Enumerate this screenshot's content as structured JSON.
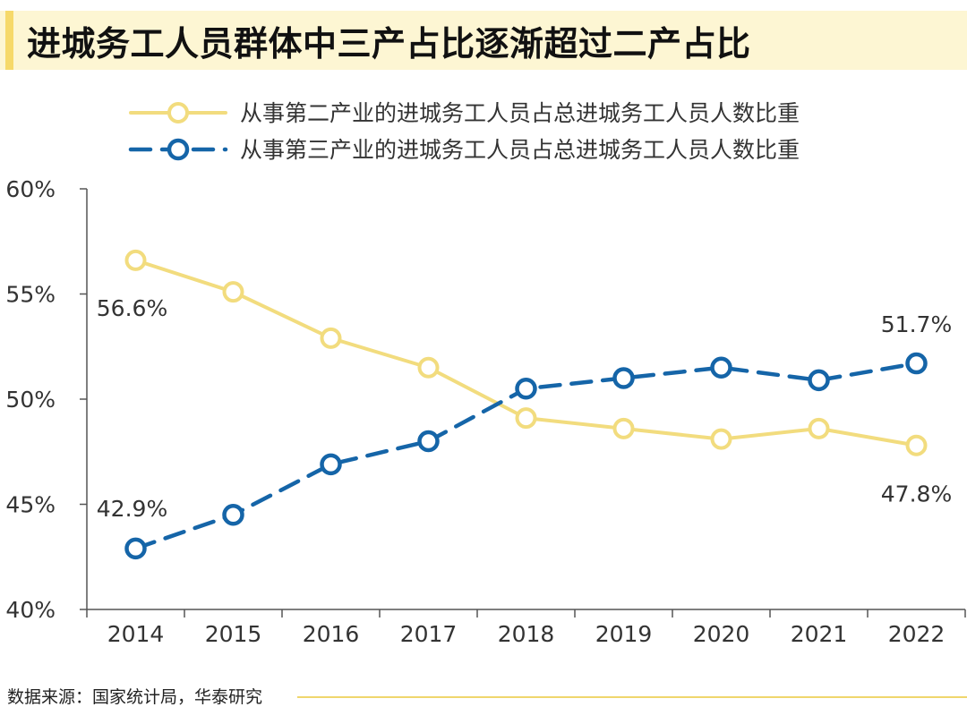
{
  "header": {
    "title": "进城务工人员群体中三产占比逐渐超过二产占比"
  },
  "footer": {
    "source": "数据来源：国家统计局，华泰研究"
  },
  "colors": {
    "secondary_industry": "#f2dc7e",
    "tertiary_industry": "#1565a8",
    "axis": "#555555",
    "text": "#333333"
  },
  "chart_data": {
    "type": "line",
    "title": "进城务工人员群体中三产占比逐渐超过二产占比",
    "x": [
      "2014",
      "2015",
      "2016",
      "2017",
      "2018",
      "2019",
      "2020",
      "2021",
      "2022"
    ],
    "ylim": [
      40,
      60
    ],
    "yticks": [
      40,
      45,
      50,
      55,
      60
    ],
    "ytick_labels": [
      "40%",
      "45%",
      "50%",
      "55%",
      "60%"
    ],
    "xlabel": "",
    "ylabel": "",
    "grid": false,
    "legend_position": "top",
    "series": [
      {
        "name": "从事第二产业的进城务工人员占总进城务工人员人数比重",
        "style": "solid",
        "values": [
          56.6,
          55.1,
          52.9,
          51.5,
          49.1,
          48.6,
          48.1,
          48.6,
          47.8
        ]
      },
      {
        "name": "从事第三产业的进城务工人员占总进城务工人员人数比重",
        "style": "dashed",
        "values": [
          42.9,
          44.5,
          46.9,
          48.0,
          50.5,
          51.0,
          51.5,
          50.9,
          51.7
        ]
      }
    ],
    "annotations": [
      {
        "series": 0,
        "index": 0,
        "text": "56.6%"
      },
      {
        "series": 0,
        "index": 8,
        "text": "47.8%"
      },
      {
        "series": 1,
        "index": 0,
        "text": "42.9%"
      },
      {
        "series": 1,
        "index": 8,
        "text": "51.7%"
      }
    ]
  }
}
